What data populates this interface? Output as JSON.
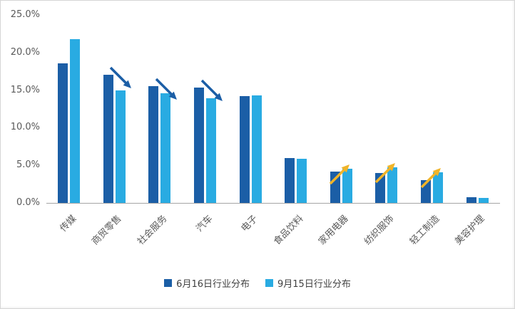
{
  "chart_data": {
    "type": "bar",
    "title": "",
    "xlabel": "",
    "ylabel": "",
    "categories": [
      "传媒",
      "商贸零售",
      "社会服务",
      "汽车",
      "电子",
      "食品饮料",
      "家用电器",
      "纺织服饰",
      "轻工制造",
      "美容护理"
    ],
    "series": [
      {
        "name": "6月16日行业分布",
        "color": "#1b5ea6",
        "values": [
          18.6,
          17.0,
          15.5,
          15.3,
          14.2,
          6.0,
          4.2,
          4.0,
          3.0,
          0.8
        ]
      },
      {
        "name": "9月15日行业分布",
        "color": "#29abe2",
        "values": [
          21.8,
          15.0,
          14.6,
          13.9,
          14.3,
          5.9,
          4.5,
          4.7,
          4.1,
          0.7
        ]
      }
    ],
    "ylim": [
      0,
      25
    ],
    "ytick_step": 5,
    "ytick_labels": [
      "0.0%",
      "5.0%",
      "10.0%",
      "15.0%",
      "20.0%",
      "25.0%"
    ],
    "grid": false,
    "legend_position": "bottom",
    "annotations": [
      {
        "category_index": 1,
        "direction": "down",
        "color": "#1b5ea6"
      },
      {
        "category_index": 2,
        "direction": "down",
        "color": "#1b5ea6"
      },
      {
        "category_index": 3,
        "direction": "down",
        "color": "#1b5ea6"
      },
      {
        "category_index": 6,
        "direction": "up",
        "color": "#f0b429"
      },
      {
        "category_index": 7,
        "direction": "up",
        "color": "#f0b429"
      },
      {
        "category_index": 8,
        "direction": "up",
        "color": "#f0b429"
      }
    ]
  }
}
